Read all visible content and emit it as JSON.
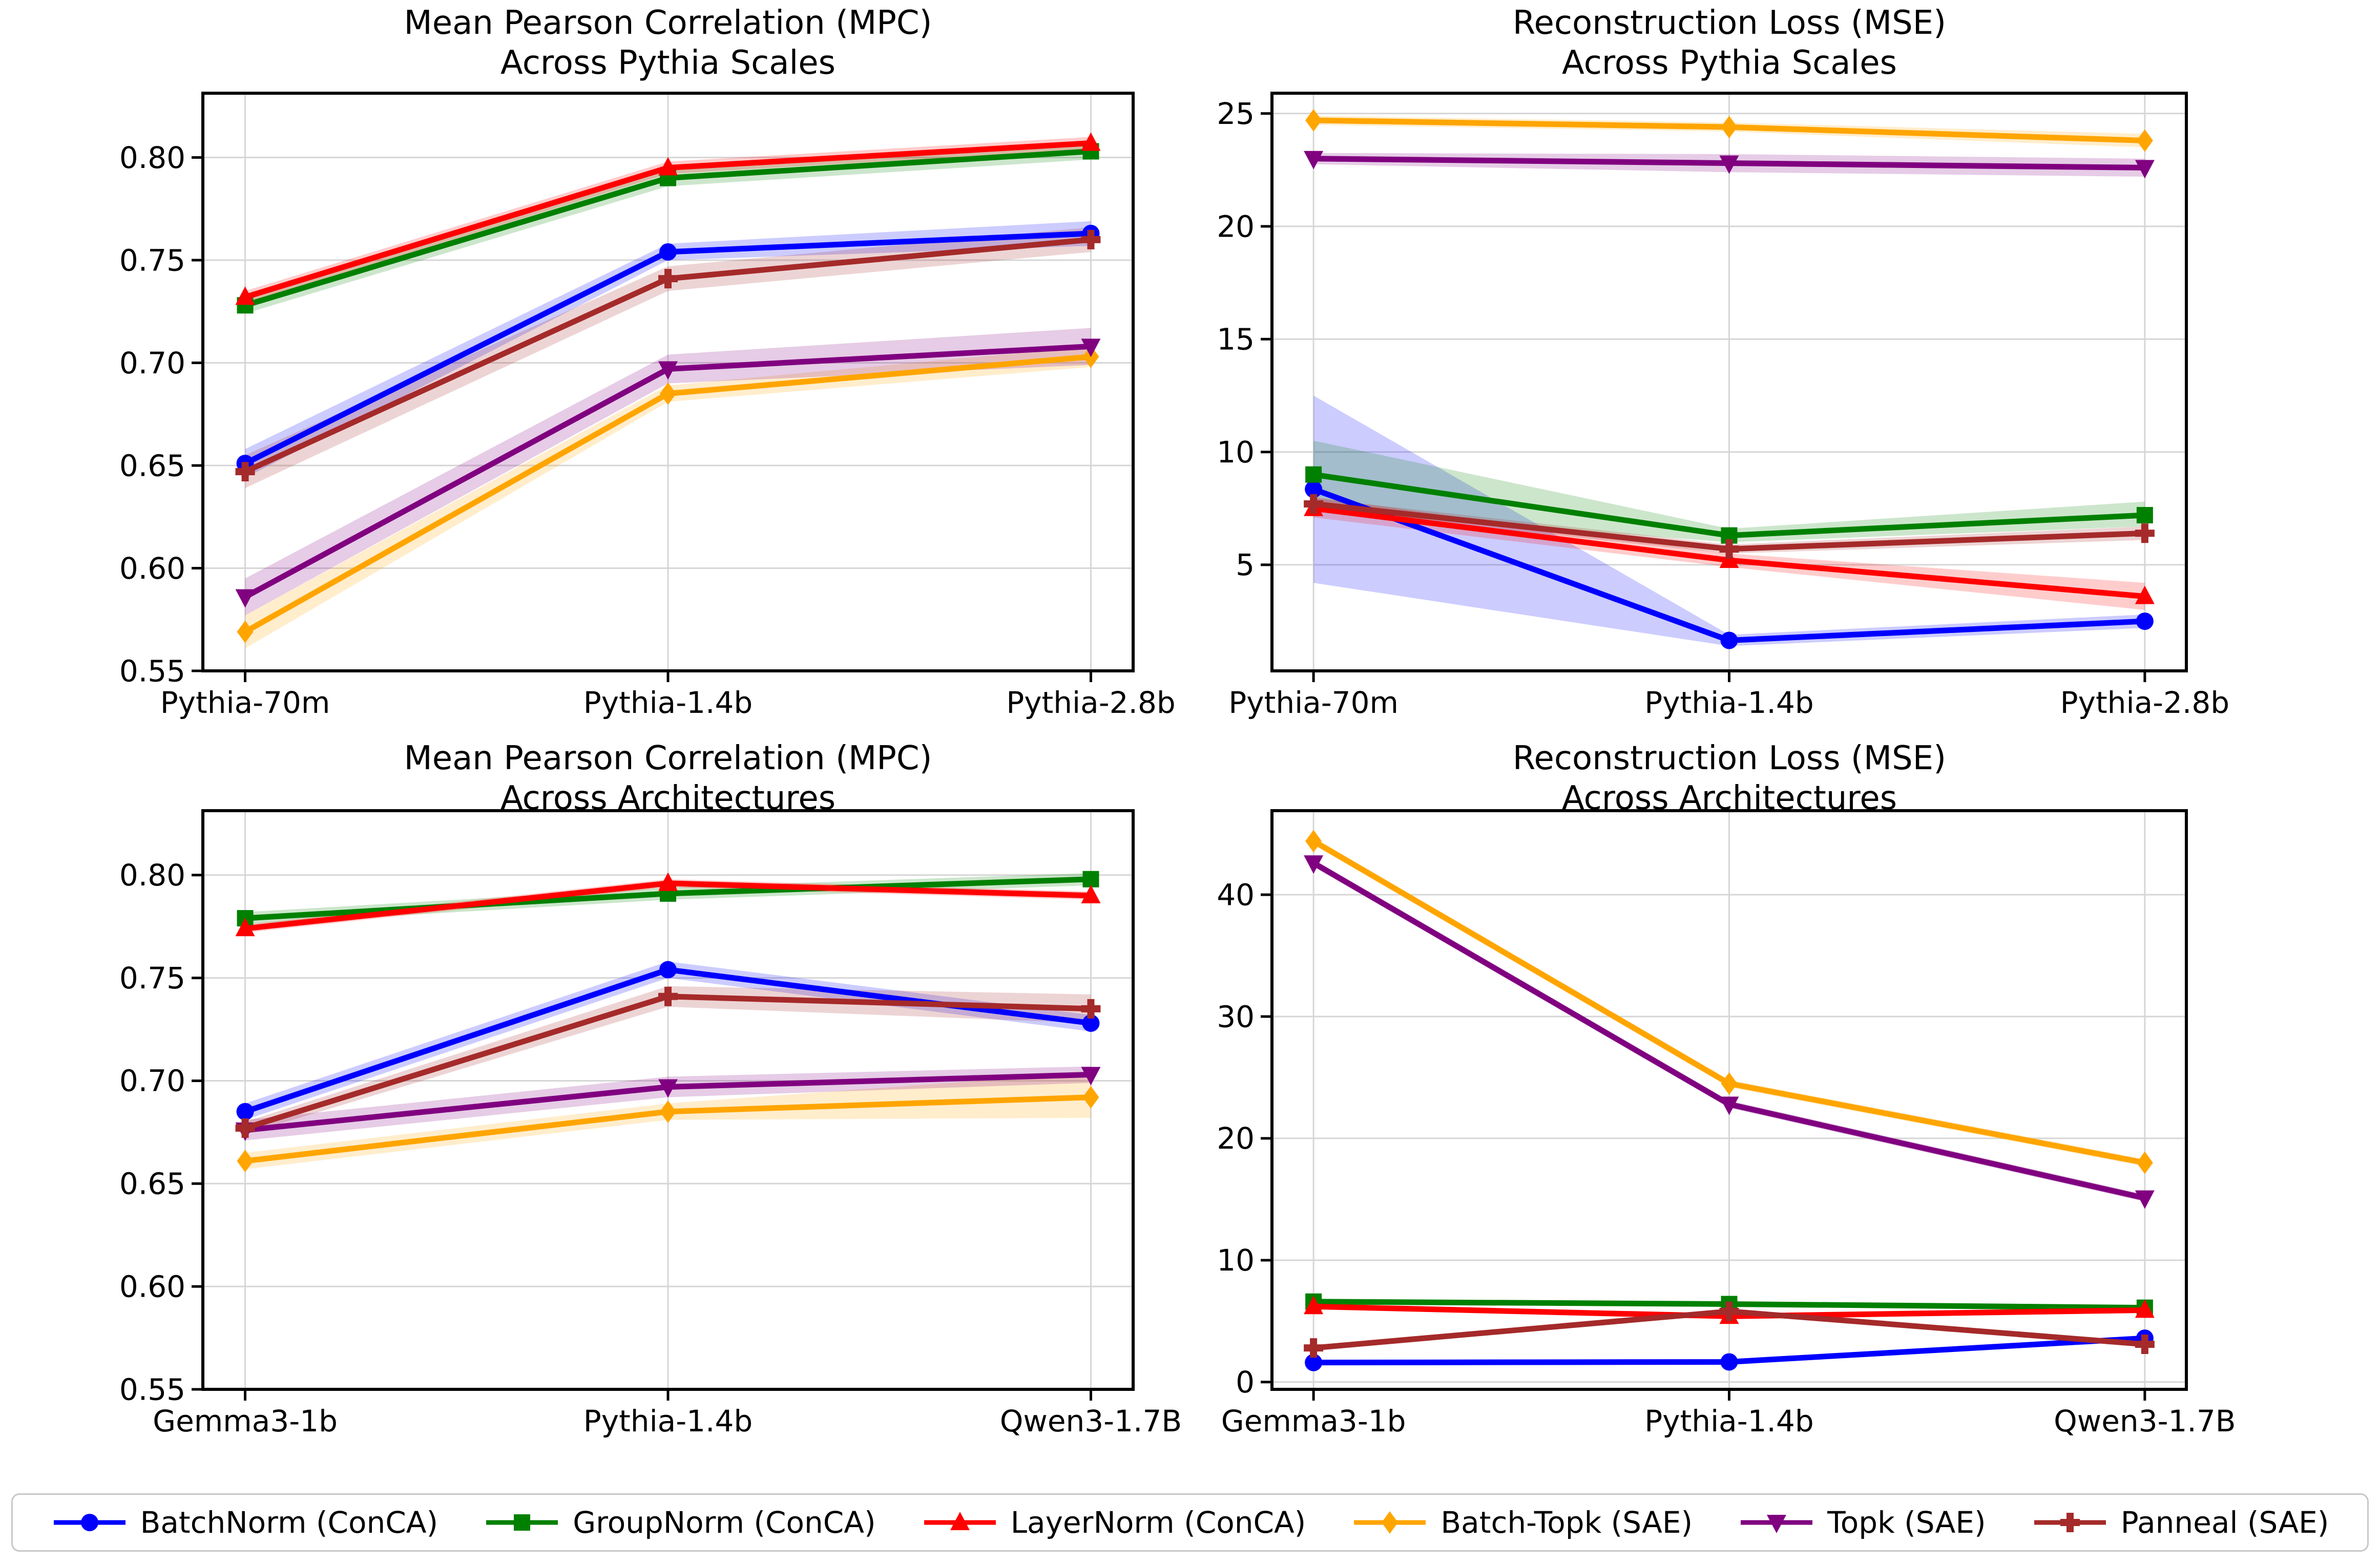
{
  "figure": {
    "background": "#ffffff",
    "grid_color": "#d6d6d6",
    "axis_color": "#000000"
  },
  "legend": {
    "entries": [
      {
        "label": "BatchNorm (ConCA)",
        "color": "#0000ff",
        "marker": "circle"
      },
      {
        "label": "GroupNorm (ConCA)",
        "color": "#008000",
        "marker": "square"
      },
      {
        "label": "LayerNorm (ConCA)",
        "color": "#ff0000",
        "marker": "triangle-up"
      },
      {
        "label": "Batch-Topk (SAE)",
        "color": "#ffa500",
        "marker": "diamond"
      },
      {
        "label": "Topk (SAE)",
        "color": "#800080",
        "marker": "triangle-down"
      },
      {
        "label": "Panneal (SAE)",
        "color": "#a52a2a",
        "marker": "plus"
      }
    ]
  },
  "chart_data": [
    {
      "type": "line",
      "title_line1": "Mean Pearson Correlation (MPC)",
      "title_line2": "Across Pythia Scales",
      "categories": [
        "Pythia-70m",
        "Pythia-1.4b",
        "Pythia-2.8b"
      ],
      "ylim": [
        0.55,
        0.8313
      ],
      "ytick_values": [
        0.55,
        0.6,
        0.65,
        0.7,
        0.75,
        0.8
      ],
      "ytick_labels": [
        "0.55",
        "0.60",
        "0.65",
        "0.70",
        "0.75",
        "0.80"
      ],
      "grid": true,
      "legend_position": "figure-bottom",
      "series": [
        {
          "name": "BatchNorm (ConCA)",
          "color": "#0000ff",
          "marker": "circle",
          "values": [
            0.651,
            0.754,
            0.763
          ],
          "band_lo": [
            0.644,
            0.75,
            0.757
          ],
          "band_hi": [
            0.658,
            0.758,
            0.769
          ]
        },
        {
          "name": "GroupNorm (ConCA)",
          "color": "#008000",
          "marker": "square",
          "values": [
            0.728,
            0.79,
            0.803
          ],
          "band_lo": [
            0.724,
            0.786,
            0.799
          ],
          "band_hi": [
            0.732,
            0.794,
            0.807
          ]
        },
        {
          "name": "LayerNorm (ConCA)",
          "color": "#ff0000",
          "marker": "triangle-up",
          "values": [
            0.732,
            0.795,
            0.807
          ],
          "band_lo": [
            0.729,
            0.792,
            0.804
          ],
          "band_hi": [
            0.735,
            0.798,
            0.81
          ]
        },
        {
          "name": "Batch-Topk (SAE)",
          "color": "#ffa500",
          "marker": "diamond",
          "values": [
            0.569,
            0.685,
            0.703
          ],
          "band_lo": [
            0.561,
            0.681,
            0.698
          ],
          "band_hi": [
            0.577,
            0.689,
            0.708
          ]
        },
        {
          "name": "Topk (SAE)",
          "color": "#800080",
          "marker": "triangle-down",
          "values": [
            0.586,
            0.697,
            0.708
          ],
          "band_lo": [
            0.577,
            0.69,
            0.699
          ],
          "band_hi": [
            0.595,
            0.704,
            0.717
          ]
        },
        {
          "name": "Panneal (SAE)",
          "color": "#a52a2a",
          "marker": "plus",
          "values": [
            0.647,
            0.741,
            0.76
          ],
          "band_lo": [
            0.639,
            0.735,
            0.754
          ],
          "band_hi": [
            0.655,
            0.747,
            0.766
          ]
        }
      ]
    },
    {
      "type": "line",
      "title_line1": "Reconstruction Loss (MSE)",
      "title_line2": "Across Pythia Scales",
      "categories": [
        "Pythia-70m",
        "Pythia-1.4b",
        "Pythia-2.8b"
      ],
      "ylim": [
        0.3,
        25.9
      ],
      "ytick_values": [
        5,
        10,
        15,
        20,
        25
      ],
      "ytick_labels": [
        "5",
        "10",
        "15",
        "20",
        "25"
      ],
      "grid": true,
      "legend_position": "figure-bottom",
      "series": [
        {
          "name": "BatchNorm (ConCA)",
          "color": "#0000ff",
          "marker": "circle",
          "values": [
            8.35,
            1.65,
            2.5
          ],
          "band_lo": [
            4.2,
            1.4,
            2.2
          ],
          "band_hi": [
            12.5,
            1.9,
            2.8
          ]
        },
        {
          "name": "GroupNorm (ConCA)",
          "color": "#008000",
          "marker": "square",
          "values": [
            9.0,
            6.3,
            7.2
          ],
          "band_lo": [
            7.4,
            6.0,
            6.7
          ],
          "band_hi": [
            10.5,
            6.6,
            7.8
          ]
        },
        {
          "name": "LayerNorm (ConCA)",
          "color": "#ff0000",
          "marker": "triangle-up",
          "values": [
            7.5,
            5.2,
            3.6
          ],
          "band_lo": [
            7.1,
            4.9,
            3.0
          ],
          "band_hi": [
            8.0,
            5.5,
            4.2
          ]
        },
        {
          "name": "Batch-Topk (SAE)",
          "color": "#ffa500",
          "marker": "diamond",
          "values": [
            24.7,
            24.4,
            23.8
          ],
          "band_lo": [
            24.5,
            24.2,
            23.5
          ],
          "band_hi": [
            24.9,
            24.6,
            24.1
          ]
        },
        {
          "name": "Topk (SAE)",
          "color": "#800080",
          "marker": "triangle-down",
          "values": [
            23.0,
            22.8,
            22.6
          ],
          "band_lo": [
            22.75,
            22.4,
            22.2
          ],
          "band_hi": [
            23.25,
            23.2,
            23.0
          ]
        },
        {
          "name": "Panneal (SAE)",
          "color": "#a52a2a",
          "marker": "plus",
          "values": [
            7.7,
            5.7,
            6.4
          ],
          "band_lo": [
            7.45,
            5.5,
            6.1
          ],
          "band_hi": [
            7.95,
            5.9,
            6.7
          ]
        }
      ]
    },
    {
      "type": "line",
      "title_line1": "Mean Pearson Correlation (MPC)",
      "title_line2": "Across Architectures",
      "categories": [
        "Gemma3-1b",
        "Pythia-1.4b",
        "Qwen3-1.7B"
      ],
      "ylim": [
        0.55,
        0.8313
      ],
      "ytick_values": [
        0.55,
        0.6,
        0.65,
        0.7,
        0.75,
        0.8
      ],
      "ytick_labels": [
        "0.55",
        "0.60",
        "0.65",
        "0.70",
        "0.75",
        "0.80"
      ],
      "grid": true,
      "legend_position": "figure-bottom",
      "series": [
        {
          "name": "BatchNorm (ConCA)",
          "color": "#0000ff",
          "marker": "circle",
          "values": [
            0.685,
            0.754,
            0.728
          ],
          "band_lo": [
            0.681,
            0.75,
            0.724
          ],
          "band_hi": [
            0.689,
            0.758,
            0.732
          ]
        },
        {
          "name": "GroupNorm (ConCA)",
          "color": "#008000",
          "marker": "square",
          "values": [
            0.779,
            0.791,
            0.798
          ],
          "band_lo": [
            0.776,
            0.788,
            0.795
          ],
          "band_hi": [
            0.782,
            0.794,
            0.801
          ]
        },
        {
          "name": "LayerNorm (ConCA)",
          "color": "#ff0000",
          "marker": "triangle-up",
          "values": [
            0.774,
            0.796,
            0.79
          ],
          "band_lo": [
            0.772,
            0.794,
            0.788
          ],
          "band_hi": [
            0.776,
            0.798,
            0.792
          ]
        },
        {
          "name": "Batch-Topk (SAE)",
          "color": "#ffa500",
          "marker": "diamond",
          "values": [
            0.661,
            0.685,
            0.692
          ],
          "band_lo": [
            0.657,
            0.681,
            0.682
          ],
          "band_hi": [
            0.665,
            0.689,
            0.704
          ]
        },
        {
          "name": "Topk (SAE)",
          "color": "#800080",
          "marker": "triangle-down",
          "values": [
            0.676,
            0.697,
            0.703
          ],
          "band_lo": [
            0.671,
            0.692,
            0.699
          ],
          "band_hi": [
            0.681,
            0.702,
            0.707
          ]
        },
        {
          "name": "Panneal (SAE)",
          "color": "#a52a2a",
          "marker": "plus",
          "values": [
            0.677,
            0.741,
            0.735
          ],
          "band_lo": [
            0.674,
            0.736,
            0.728
          ],
          "band_hi": [
            0.68,
            0.746,
            0.742
          ]
        }
      ]
    },
    {
      "type": "line",
      "title_line1": "Reconstruction Loss (MSE)",
      "title_line2": "Across Architectures",
      "categories": [
        "Gemma3-1b",
        "Pythia-1.4b",
        "Qwen3-1.7B"
      ],
      "ylim": [
        -0.6,
        46.9
      ],
      "ytick_values": [
        0,
        10,
        20,
        30,
        40
      ],
      "ytick_labels": [
        "0",
        "10",
        "20",
        "30",
        "40"
      ],
      "grid": true,
      "legend_position": "figure-bottom",
      "series": [
        {
          "name": "BatchNorm (ConCA)",
          "color": "#0000ff",
          "marker": "circle",
          "values": [
            1.6,
            1.65,
            3.6
          ],
          "band_lo": [
            1.45,
            1.5,
            3.45
          ],
          "band_hi": [
            1.75,
            1.8,
            3.75
          ]
        },
        {
          "name": "GroupNorm (ConCA)",
          "color": "#008000",
          "marker": "square",
          "values": [
            6.6,
            6.4,
            6.1
          ],
          "band_lo": [
            6.4,
            6.2,
            5.9
          ],
          "band_hi": [
            6.8,
            6.6,
            6.3
          ]
        },
        {
          "name": "LayerNorm (ConCA)",
          "color": "#ff0000",
          "marker": "triangle-up",
          "values": [
            6.2,
            5.4,
            5.9
          ],
          "band_lo": [
            6.0,
            5.2,
            5.7
          ],
          "band_hi": [
            6.4,
            5.6,
            6.1
          ]
        },
        {
          "name": "Batch-Topk (SAE)",
          "color": "#ffa500",
          "marker": "diamond",
          "values": [
            44.4,
            24.5,
            18.0
          ],
          "band_lo": [
            44.1,
            24.2,
            17.7
          ],
          "band_hi": [
            44.7,
            24.8,
            18.3
          ]
        },
        {
          "name": "Topk (SAE)",
          "color": "#800080",
          "marker": "triangle-down",
          "values": [
            42.6,
            22.8,
            15.1
          ],
          "band_lo": [
            42.3,
            22.5,
            14.8
          ],
          "band_hi": [
            42.9,
            23.1,
            15.4
          ]
        },
        {
          "name": "Panneal (SAE)",
          "color": "#a52a2a",
          "marker": "plus",
          "values": [
            2.8,
            5.8,
            3.1
          ],
          "band_lo": [
            2.6,
            5.6,
            2.9
          ],
          "band_hi": [
            3.0,
            6.0,
            3.3
          ]
        }
      ]
    }
  ]
}
